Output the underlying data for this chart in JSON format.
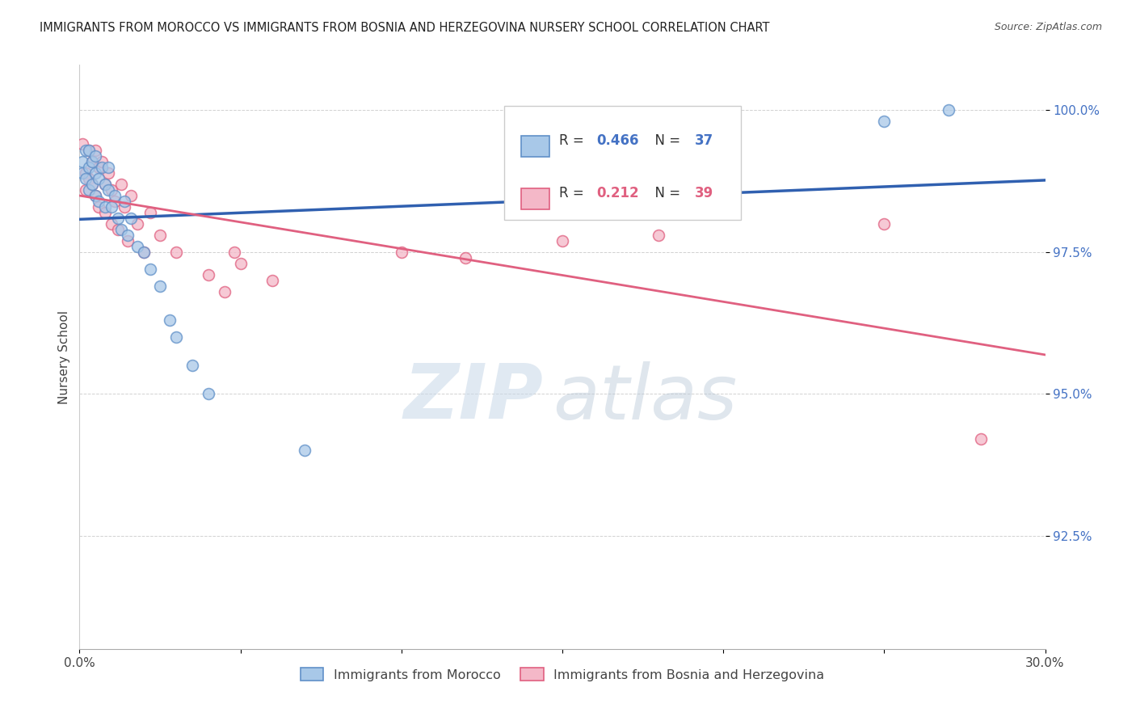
{
  "title": "IMMIGRANTS FROM MOROCCO VS IMMIGRANTS FROM BOSNIA AND HERZEGOVINA NURSERY SCHOOL CORRELATION CHART",
  "source": "Source: ZipAtlas.com",
  "ylabel": "Nursery School",
  "ytick_labels": [
    "100.0%",
    "97.5%",
    "95.0%",
    "92.5%"
  ],
  "ytick_values": [
    1.0,
    0.975,
    0.95,
    0.925
  ],
  "xlim": [
    0.0,
    0.3
  ],
  "ylim": [
    0.905,
    1.008
  ],
  "legend_r1": "0.466",
  "legend_n1": "37",
  "legend_r2": "0.212",
  "legend_n2": "39",
  "color_morocco": "#a8c8e8",
  "color_bosnia": "#f4b8c8",
  "edge_morocco": "#6090c8",
  "edge_bosnia": "#e06080",
  "line_color_morocco": "#3060b0",
  "line_color_bosnia": "#e06080",
  "marker_size": 100,
  "morocco_x": [
    0.001,
    0.001,
    0.002,
    0.002,
    0.003,
    0.003,
    0.003,
    0.004,
    0.004,
    0.005,
    0.005,
    0.005,
    0.006,
    0.006,
    0.007,
    0.008,
    0.008,
    0.009,
    0.009,
    0.01,
    0.011,
    0.012,
    0.013,
    0.014,
    0.015,
    0.016,
    0.018,
    0.02,
    0.022,
    0.025,
    0.028,
    0.03,
    0.035,
    0.04,
    0.07,
    0.25,
    0.27
  ],
  "morocco_y": [
    0.991,
    0.989,
    0.993,
    0.988,
    0.993,
    0.99,
    0.986,
    0.991,
    0.987,
    0.992,
    0.989,
    0.985,
    0.988,
    0.984,
    0.99,
    0.987,
    0.983,
    0.99,
    0.986,
    0.983,
    0.985,
    0.981,
    0.979,
    0.984,
    0.978,
    0.981,
    0.976,
    0.975,
    0.972,
    0.969,
    0.963,
    0.96,
    0.955,
    0.95,
    0.94,
    0.998,
    1.0
  ],
  "bosnia_x": [
    0.001,
    0.002,
    0.002,
    0.003,
    0.003,
    0.004,
    0.004,
    0.005,
    0.005,
    0.006,
    0.006,
    0.007,
    0.008,
    0.008,
    0.009,
    0.01,
    0.01,
    0.011,
    0.012,
    0.013,
    0.014,
    0.015,
    0.016,
    0.018,
    0.02,
    0.022,
    0.025,
    0.03,
    0.04,
    0.045,
    0.048,
    0.05,
    0.06,
    0.1,
    0.12,
    0.15,
    0.18,
    0.25,
    0.28
  ],
  "bosnia_y": [
    0.994,
    0.989,
    0.986,
    0.993,
    0.988,
    0.991,
    0.987,
    0.993,
    0.985,
    0.99,
    0.983,
    0.991,
    0.987,
    0.982,
    0.989,
    0.986,
    0.98,
    0.984,
    0.979,
    0.987,
    0.983,
    0.977,
    0.985,
    0.98,
    0.975,
    0.982,
    0.978,
    0.975,
    0.971,
    0.968,
    0.975,
    0.973,
    0.97,
    0.975,
    0.974,
    0.977,
    0.978,
    0.98,
    0.942
  ],
  "watermark_zip": "ZIP",
  "watermark_atlas": "atlas",
  "background_color": "#ffffff",
  "grid_color": "#cccccc"
}
